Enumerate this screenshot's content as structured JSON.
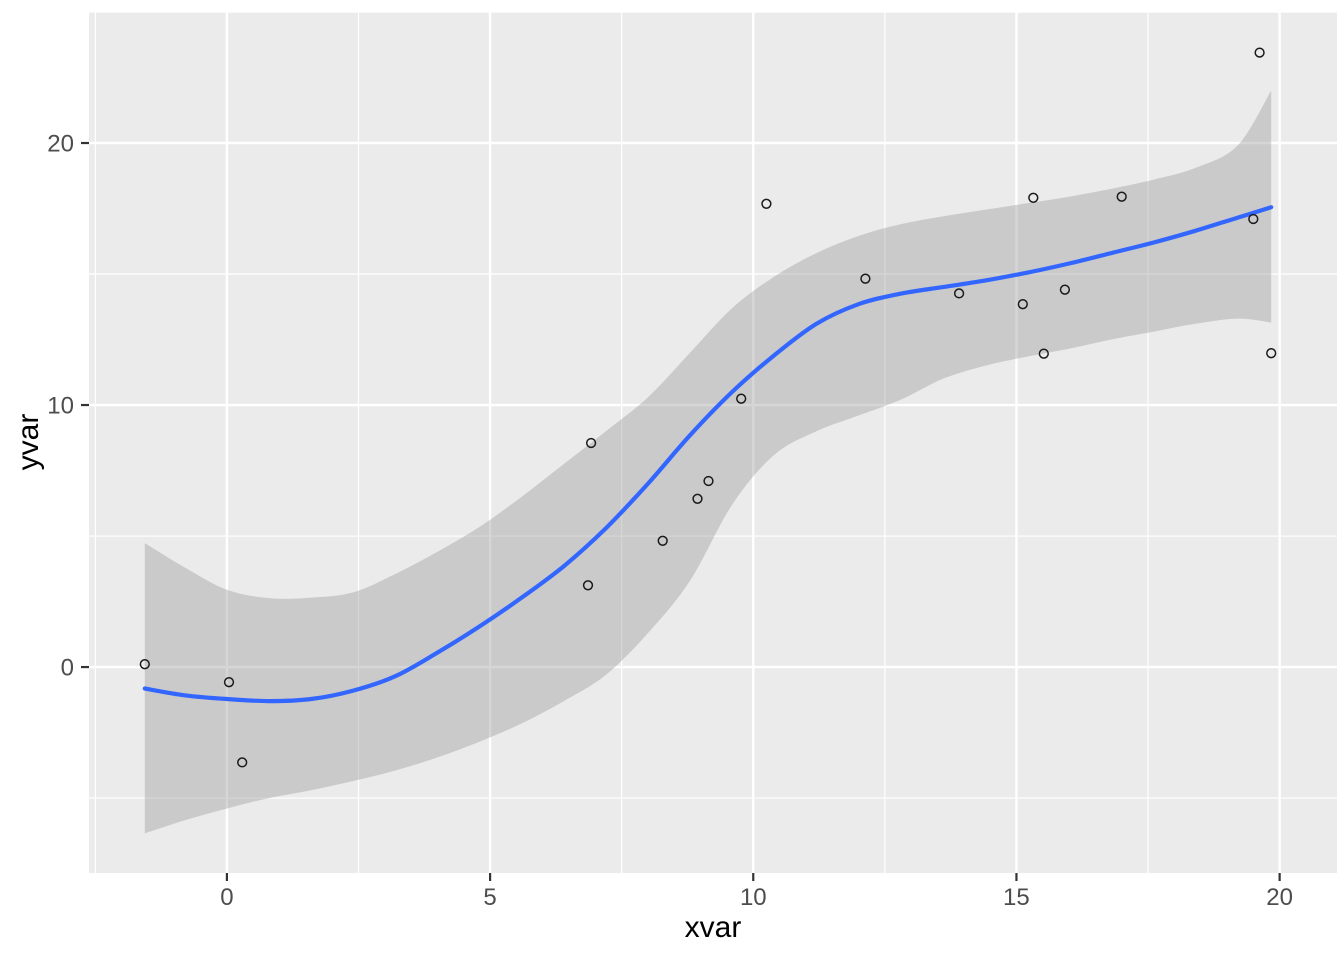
{
  "chart_data": {
    "type": "scatter",
    "title": "",
    "xlabel": "xvar",
    "ylabel": "yvar",
    "legend": "none",
    "grid": true,
    "xlim": [
      -2.62,
      21.09
    ],
    "ylim": [
      -7.86,
      25.0
    ],
    "x_ticks_major": [
      0,
      5,
      10,
      15,
      20
    ],
    "x_tick_labels": [
      "0",
      "5",
      "10",
      "15",
      "20"
    ],
    "x_ticks_minor": [
      -2.5,
      2.5,
      7.5,
      12.5,
      17.5
    ],
    "y_ticks_major": [
      0,
      10,
      20
    ],
    "y_tick_labels": [
      "0",
      "10",
      "20"
    ],
    "y_ticks_minor": [
      -5,
      5,
      15,
      25
    ],
    "points": [
      [
        -1.56,
        0.11
      ],
      [
        0.04,
        -0.58
      ],
      [
        0.29,
        -3.64
      ],
      [
        6.86,
        3.12
      ],
      [
        6.92,
        8.55
      ],
      [
        8.28,
        4.82
      ],
      [
        8.94,
        6.42
      ],
      [
        9.15,
        7.1
      ],
      [
        9.77,
        10.24
      ],
      [
        10.25,
        17.68
      ],
      [
        12.13,
        14.82
      ],
      [
        13.91,
        14.26
      ],
      [
        15.12,
        13.85
      ],
      [
        15.32,
        17.91
      ],
      [
        15.52,
        11.96
      ],
      [
        15.92,
        14.4
      ],
      [
        17.0,
        17.95
      ],
      [
        19.5,
        17.1
      ],
      [
        19.62,
        23.45
      ],
      [
        19.84,
        11.98
      ]
    ],
    "smooth_line": [
      [
        -1.56,
        -0.82
      ],
      [
        -0.8,
        -1.08
      ],
      [
        0,
        -1.22
      ],
      [
        0.8,
        -1.3
      ],
      [
        1.6,
        -1.22
      ],
      [
        2.4,
        -0.9
      ],
      [
        3.2,
        -0.35
      ],
      [
        4,
        0.55
      ],
      [
        4.8,
        1.55
      ],
      [
        5.6,
        2.65
      ],
      [
        6.4,
        3.85
      ],
      [
        7.2,
        5.3
      ],
      [
        8,
        7.0
      ],
      [
        8.8,
        8.85
      ],
      [
        9.6,
        10.5
      ],
      [
        10.4,
        11.9
      ],
      [
        11.2,
        13.1
      ],
      [
        12,
        13.85
      ],
      [
        12.8,
        14.25
      ],
      [
        13.6,
        14.5
      ],
      [
        14.4,
        14.75
      ],
      [
        15.2,
        15.05
      ],
      [
        16,
        15.4
      ],
      [
        16.8,
        15.8
      ],
      [
        17.6,
        16.2
      ],
      [
        18.4,
        16.65
      ],
      [
        19.2,
        17.15
      ],
      [
        19.84,
        17.55
      ]
    ],
    "ribbon": {
      "x": [
        -1.56,
        -0.8,
        0,
        0.8,
        1.6,
        2.4,
        3.2,
        4,
        4.8,
        5.6,
        6.4,
        7.2,
        8,
        8.8,
        9.6,
        10.4,
        11.2,
        12,
        12.8,
        13.6,
        14.4,
        15.2,
        16,
        16.8,
        17.6,
        18.4,
        19.2,
        19.84
      ],
      "upper": [
        4.73,
        3.8,
        2.95,
        2.63,
        2.65,
        2.85,
        3.55,
        4.4,
        5.35,
        6.5,
        7.75,
        9.0,
        10.3,
        12.0,
        13.7,
        14.9,
        15.8,
        16.45,
        16.9,
        17.2,
        17.45,
        17.7,
        17.95,
        18.25,
        18.6,
        19.05,
        19.9,
        22.0
      ],
      "lower": [
        -6.35,
        -5.85,
        -5.4,
        -5.0,
        -4.7,
        -4.35,
        -3.95,
        -3.45,
        -2.85,
        -2.15,
        -1.3,
        -0.3,
        1.3,
        3.3,
        6.2,
        8.1,
        9.0,
        9.6,
        10.2,
        11.0,
        11.5,
        11.85,
        12.15,
        12.5,
        12.8,
        13.1,
        13.3,
        13.15
      ]
    },
    "colors": {
      "panel_bg": "#EBEBEB",
      "grid": "#FFFFFF",
      "ribbon_fill": "#999999",
      "ribbon_opacity": 0.4,
      "smooth_line": "#3366FF",
      "point_stroke": "#1a1a1a",
      "tick_mark": "#333333",
      "tick_label": "#4D4D4D",
      "axis_title": "#000000"
    }
  }
}
